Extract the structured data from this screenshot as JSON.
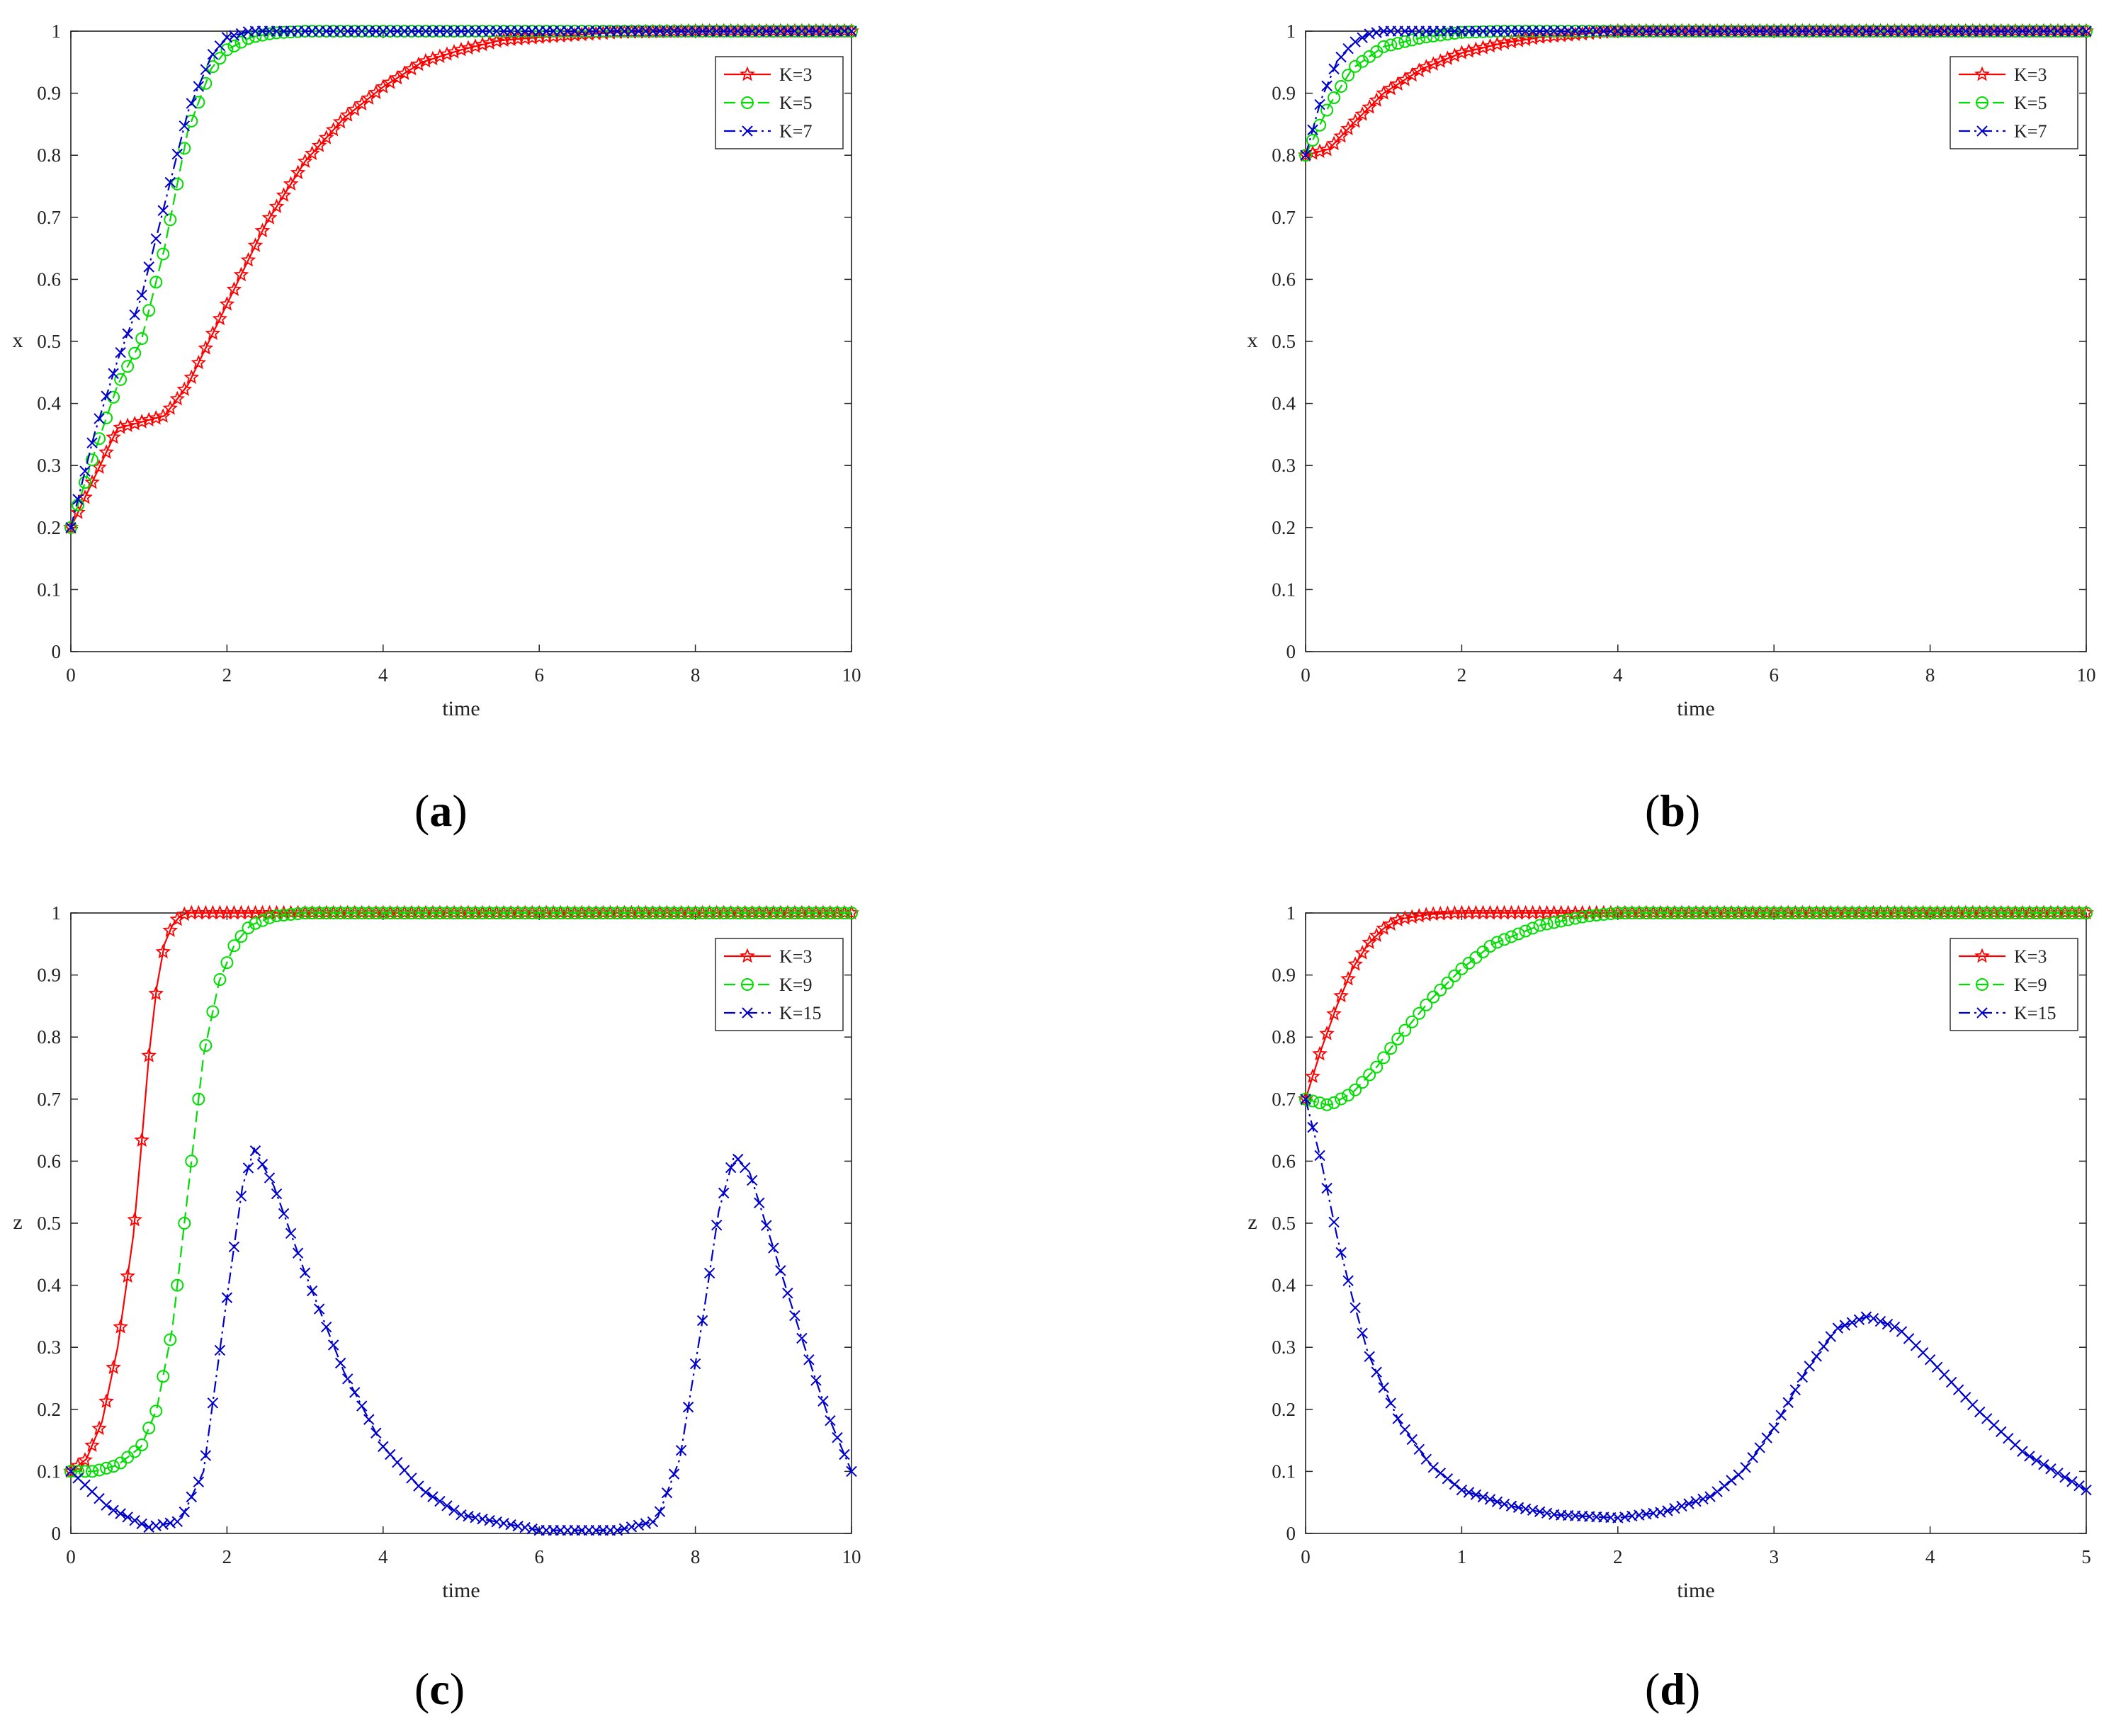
{
  "figure": {
    "captions": [
      "a",
      "b",
      "c",
      "d"
    ]
  },
  "chart_data": [
    {
      "type": "line",
      "panel": "a",
      "xlabel": "time",
      "ylabel": "x",
      "xlim": [
        0,
        10
      ],
      "ylim": [
        0,
        1
      ],
      "xticks": [
        0,
        2,
        4,
        6,
        8,
        10
      ],
      "yticks": [
        0,
        0.1,
        0.2,
        0.3,
        0.4,
        0.5,
        0.6,
        0.7,
        0.8,
        0.9,
        1
      ],
      "legend_position": "top-right",
      "series": [
        {
          "name": "K=3",
          "color": "#ff0000",
          "marker": "star",
          "dash": "solid",
          "x": [
            0,
            0.3,
            0.6,
            0.9,
            1.2,
            1.5,
            2.0,
            2.5,
            3.0,
            3.5,
            4.0,
            4.5,
            5.0,
            5.5,
            6.0,
            7.0,
            8.0,
            10.0
          ],
          "y": [
            0.2,
            0.28,
            0.36,
            0.37,
            0.38,
            0.43,
            0.56,
            0.69,
            0.79,
            0.86,
            0.91,
            0.95,
            0.97,
            0.985,
            0.99,
            0.998,
            1.0,
            1.0
          ]
        },
        {
          "name": "K=5",
          "color": "#00dd00",
          "marker": "circle",
          "dash": "dashed",
          "x": [
            0,
            0.3,
            0.6,
            0.9,
            1.2,
            1.5,
            1.8,
            2.0,
            2.3,
            2.6,
            3.0,
            4.0,
            10.0
          ],
          "y": [
            0.2,
            0.32,
            0.43,
            0.5,
            0.65,
            0.84,
            0.94,
            0.97,
            0.99,
            0.997,
            1.0,
            1.0,
            1.0
          ]
        },
        {
          "name": "K=7",
          "color": "#0000cc",
          "marker": "x",
          "dash": "dashdot",
          "x": [
            0,
            0.3,
            0.6,
            0.9,
            1.2,
            1.5,
            1.8,
            2.0,
            2.3,
            2.6,
            3.0,
            10.0
          ],
          "y": [
            0.2,
            0.35,
            0.47,
            0.57,
            0.72,
            0.87,
            0.96,
            0.99,
            1.0,
            1.0,
            1.0,
            1.0
          ]
        }
      ]
    },
    {
      "type": "line",
      "panel": "b",
      "xlabel": "time",
      "ylabel": "x",
      "xlim": [
        0,
        10
      ],
      "ylim": [
        0,
        1
      ],
      "xticks": [
        0,
        2,
        4,
        6,
        8,
        10
      ],
      "yticks": [
        0,
        0.1,
        0.2,
        0.3,
        0.4,
        0.5,
        0.6,
        0.7,
        0.8,
        0.9,
        1
      ],
      "legend_position": "top-right",
      "series": [
        {
          "name": "K=3",
          "color": "#ff0000",
          "marker": "star",
          "dash": "solid",
          "x": [
            0,
            0.3,
            0.6,
            1.0,
            1.5,
            2.0,
            2.5,
            3.0,
            3.5,
            4.0,
            5.0,
            6.0,
            10.0
          ],
          "y": [
            0.8,
            0.81,
            0.85,
            0.9,
            0.94,
            0.965,
            0.98,
            0.99,
            0.995,
            1.0,
            1.0,
            1.0,
            1.0
          ]
        },
        {
          "name": "K=5",
          "color": "#00dd00",
          "marker": "circle",
          "dash": "dashed",
          "x": [
            0,
            0.3,
            0.6,
            1.0,
            1.5,
            2.0,
            2.5,
            3.0,
            10.0
          ],
          "y": [
            0.8,
            0.88,
            0.94,
            0.975,
            0.99,
            0.998,
            1.0,
            1.0,
            1.0
          ]
        },
        {
          "name": "K=7",
          "color": "#0000cc",
          "marker": "x",
          "dash": "dashdot",
          "x": [
            0,
            0.2,
            0.4,
            0.6,
            0.8,
            1.0,
            1.5,
            2.0,
            10.0
          ],
          "y": [
            0.8,
            0.89,
            0.95,
            0.98,
            0.995,
            1.0,
            1.0,
            1.0,
            1.0
          ]
        }
      ]
    },
    {
      "type": "line",
      "panel": "c",
      "xlabel": "time",
      "ylabel": "z",
      "xlim": [
        0,
        10
      ],
      "ylim": [
        0,
        1
      ],
      "xticks": [
        0,
        2,
        4,
        6,
        8,
        10
      ],
      "yticks": [
        0,
        0.1,
        0.2,
        0.3,
        0.4,
        0.5,
        0.6,
        0.7,
        0.8,
        0.9,
        1
      ],
      "legend_position": "top-right",
      "series": [
        {
          "name": "K=3",
          "color": "#ff0000",
          "marker": "star",
          "dash": "solid",
          "x": [
            0,
            0.2,
            0.4,
            0.6,
            0.8,
            0.9,
            1.0,
            1.1,
            1.2,
            1.3,
            1.4,
            1.5,
            1.7,
            2.0,
            10.0
          ],
          "y": [
            0.1,
            0.12,
            0.18,
            0.3,
            0.48,
            0.62,
            0.77,
            0.88,
            0.95,
            0.98,
            0.995,
            1.0,
            1.0,
            1.0,
            1.0
          ]
        },
        {
          "name": "K=9",
          "color": "#00dd00",
          "marker": "circle",
          "dash": "dashed",
          "x": [
            0,
            0.3,
            0.6,
            0.9,
            1.1,
            1.3,
            1.5,
            1.7,
            1.9,
            2.1,
            2.3,
            2.6,
            3.0,
            10.0
          ],
          "y": [
            0.1,
            0.1,
            0.11,
            0.14,
            0.2,
            0.33,
            0.55,
            0.77,
            0.89,
            0.95,
            0.98,
            0.995,
            1.0,
            1.0
          ]
        },
        {
          "name": "K=15",
          "color": "#0000cc",
          "marker": "x",
          "dash": "dashdot",
          "x": [
            0,
            0.5,
            1.0,
            1.4,
            1.7,
            2.0,
            2.2,
            2.35,
            2.6,
            3.0,
            3.5,
            4.0,
            4.5,
            5.0,
            6.0,
            7.0,
            7.5,
            7.8,
            8.1,
            8.3,
            8.5,
            8.7,
            9.0,
            9.4,
            9.7,
            10.0
          ],
          "y": [
            0.1,
            0.04,
            0.01,
            0.02,
            0.1,
            0.38,
            0.56,
            0.62,
            0.56,
            0.42,
            0.26,
            0.14,
            0.07,
            0.03,
            0.005,
            0.005,
            0.02,
            0.12,
            0.35,
            0.52,
            0.61,
            0.58,
            0.46,
            0.3,
            0.19,
            0.1
          ]
        }
      ]
    },
    {
      "type": "line",
      "panel": "d",
      "xlabel": "time",
      "ylabel": "z",
      "xlim": [
        0,
        5
      ],
      "ylim": [
        0,
        1
      ],
      "xticks": [
        0,
        1,
        2,
        3,
        4,
        5
      ],
      "yticks": [
        0,
        0.1,
        0.2,
        0.3,
        0.4,
        0.5,
        0.6,
        0.7,
        0.8,
        0.9,
        1
      ],
      "legend_position": "top-right",
      "series": [
        {
          "name": "K=3",
          "color": "#ff0000",
          "marker": "star",
          "dash": "solid",
          "x": [
            0,
            0.1,
            0.2,
            0.3,
            0.4,
            0.5,
            0.6,
            0.8,
            1.0,
            1.5,
            5.0
          ],
          "y": [
            0.7,
            0.78,
            0.85,
            0.91,
            0.95,
            0.975,
            0.99,
            0.998,
            1.0,
            1.0,
            1.0
          ]
        },
        {
          "name": "K=9",
          "color": "#00dd00",
          "marker": "circle",
          "dash": "dashed",
          "x": [
            0,
            0.15,
            0.3,
            0.45,
            0.6,
            0.8,
            1.0,
            1.2,
            1.5,
            1.8,
            2.0,
            2.5,
            5.0
          ],
          "y": [
            0.7,
            0.69,
            0.71,
            0.75,
            0.8,
            0.86,
            0.91,
            0.95,
            0.98,
            0.995,
            1.0,
            1.0,
            1.0
          ]
        },
        {
          "name": "K=15",
          "color": "#0000cc",
          "marker": "x",
          "dash": "dashdot",
          "x": [
            0,
            0.1,
            0.2,
            0.3,
            0.4,
            0.6,
            0.8,
            1.0,
            1.3,
            1.6,
            2.0,
            2.3,
            2.6,
            2.8,
            3.0,
            3.2,
            3.4,
            3.6,
            3.8,
            4.0,
            4.3,
            4.6,
            5.0
          ],
          "y": [
            0.7,
            0.6,
            0.48,
            0.38,
            0.29,
            0.18,
            0.11,
            0.07,
            0.045,
            0.03,
            0.025,
            0.035,
            0.06,
            0.1,
            0.17,
            0.26,
            0.33,
            0.35,
            0.33,
            0.28,
            0.2,
            0.13,
            0.07
          ]
        }
      ]
    }
  ]
}
